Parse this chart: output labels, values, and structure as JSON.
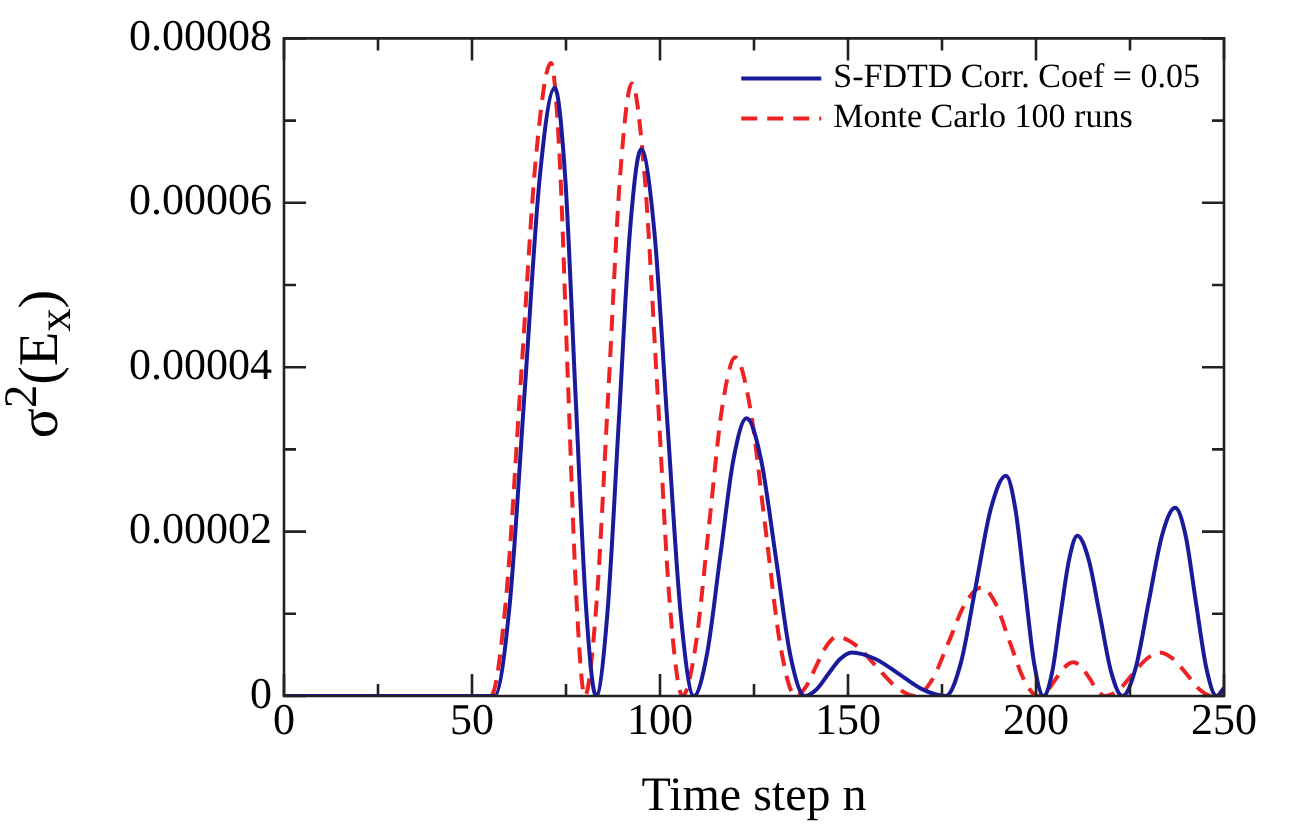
{
  "chart_data": {
    "type": "line",
    "xlabel": "Time step n",
    "ylabel": "σ$^{2}$(E$_{x}$)",
    "xlim": [
      0,
      250
    ],
    "ylim": [
      0,
      8e-05
    ],
    "xticks": [
      0,
      {
        "value": 25,
        "label": null
      },
      50,
      {
        "value": 75,
        "label": null
      },
      100,
      {
        "value": 125,
        "label": null
      },
      150,
      {
        "value": 175,
        "label": null
      },
      200,
      {
        "value": 225,
        "label": null
      },
      250
    ],
    "yticks": [
      0,
      {
        "value": 1e-05,
        "label": null
      },
      {
        "value": 2e-05,
        "label": "0.00002"
      },
      {
        "value": 3e-05,
        "label": null
      },
      {
        "value": 4e-05,
        "label": "0.00004"
      },
      {
        "value": 5e-05,
        "label": null
      },
      {
        "value": 6e-05,
        "label": "0.00006"
      },
      {
        "value": 7e-05,
        "label": null
      },
      {
        "value": 8e-05,
        "label": "0.00008"
      }
    ],
    "grid": false,
    "legend": "top right",
    "marker": "none",
    "series": [
      {
        "name": "S-FDTD Corr. Coef = 0.05",
        "color": "#1a1a9c",
        "line_style": "solid",
        "x": [
          0,
          50,
          56,
          60,
          64,
          68,
          72,
          74.8,
          77.5,
          80.3,
          83,
          86,
          89,
          92,
          95,
          98.5,
          102,
          105.5,
          109,
          112.5,
          116,
          119.5,
          123,
          126.9,
          130.8,
          134.6,
          138.5,
          141.6,
          144.8,
          147.9,
          151,
          157.3,
          163.5,
          169.8,
          176,
          180,
          184,
          188,
          192,
          194.5,
          197,
          199.5,
          202,
          204.3,
          206.5,
          208.8,
          211,
          214,
          217,
          220,
          223,
          226.5,
          230,
          233.5,
          237,
          239.8,
          242.5,
          245.3,
          248,
          250
        ],
        "values": [
          0,
          0,
          0,
          1.1e-05,
          3.7e-05,
          6.3e-05,
          7.4e-05,
          6.3e-05,
          3.7e-05,
          1.1e-05,
          0,
          1e-05,
          3.3e-05,
          5.65e-05,
          6.65e-05,
          5.65e-05,
          3.3e-05,
          1e-05,
          0,
          5.1e-06,
          1.69e-05,
          2.87e-05,
          3.38e-05,
          2.87e-05,
          1.69e-05,
          5.1e-06,
          0,
          8e-07,
          2.7e-06,
          4.5e-06,
          5.3e-06,
          4.5e-06,
          2.7e-06,
          8e-07,
          0,
          4e-06,
          1.34e-05,
          2.28e-05,
          2.68e-05,
          2.28e-05,
          1.34e-05,
          4e-06,
          0,
          2.9e-06,
          9.8e-06,
          1.66e-05,
          1.95e-05,
          1.66e-05,
          9.8e-06,
          2.9e-06,
          0,
          3.4e-06,
          1.15e-05,
          1.95e-05,
          2.29e-05,
          1.95e-05,
          1.15e-05,
          3.4e-06,
          0,
          1e-06
        ]
      },
      {
        "name": "Monte Carlo 100 runs",
        "color": "#ee2222",
        "line_style": "dashed",
        "x": [
          0,
          50,
          55,
          59,
          63,
          67,
          71,
          73.3,
          75.5,
          77.8,
          80,
          83.1,
          86.3,
          89.4,
          92.5,
          95.9,
          99.3,
          102.6,
          106,
          109.5,
          113,
          116.5,
          120,
          124,
          128,
          132,
          136,
          138.8,
          141.5,
          144.3,
          147,
          152.3,
          157.5,
          162.8,
          168,
          172.4,
          176.8,
          181.1,
          185.5,
          189.3,
          193,
          196.8,
          200.5,
          202.9,
          205.3,
          207.6,
          210,
          212.1,
          214.3,
          216.4,
          218.5,
          222.1,
          225.8,
          229.4,
          233,
          236.5,
          240,
          243.5,
          247,
          250
        ],
        "values": [
          0,
          0,
          0,
          1.16e-05,
          3.85e-05,
          6.55e-05,
          7.7e-05,
          6.55e-05,
          3.85e-05,
          1.16e-05,
          0,
          1.12e-05,
          3.73e-05,
          6.33e-05,
          7.45e-05,
          6.33e-05,
          3.73e-05,
          1.12e-05,
          0,
          6.2e-06,
          2.06e-05,
          3.5e-05,
          4.12e-05,
          3.5e-05,
          2.06e-05,
          6.2e-06,
          0,
          1.1e-06,
          3.6e-06,
          6.1e-06,
          7.2e-06,
          6.1e-06,
          3.6e-06,
          1.1e-06,
          0,
          2e-06,
          6.6e-06,
          1.12e-05,
          1.32e-05,
          1.12e-05,
          6.6e-06,
          2e-06,
          0,
          6e-07,
          2.1e-06,
          3.5e-06,
          4.1e-06,
          3.5e-06,
          2.1e-06,
          6e-07,
          0,
          8e-07,
          2.7e-06,
          4.5e-06,
          5.3e-06,
          4.5e-06,
          2.7e-06,
          8e-07,
          0,
          5e-07
        ]
      }
    ]
  }
}
